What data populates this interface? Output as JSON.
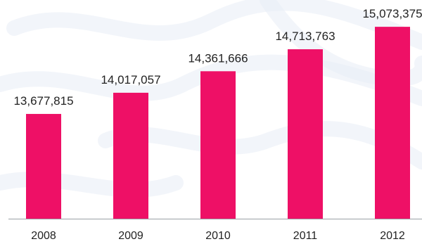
{
  "chart_data": {
    "type": "bar",
    "categories": [
      "2008",
      "2009",
      "2010",
      "2011",
      "2012"
    ],
    "values": [
      13677815,
      14017057,
      14361666,
      14713763,
      15073375
    ],
    "value_labels": [
      "13,677,815",
      "14,017,057",
      "14,361,666",
      "14,713,763",
      "15,073,375"
    ],
    "title": "",
    "xlabel": "",
    "ylabel": "",
    "ylim": [
      12000000,
      15300000
    ],
    "grid": false,
    "legend": "none"
  },
  "colors": {
    "bar": "#EE1066",
    "axis": "#9aa0a6",
    "text": "#222222",
    "watermark": "#e8edf5"
  }
}
